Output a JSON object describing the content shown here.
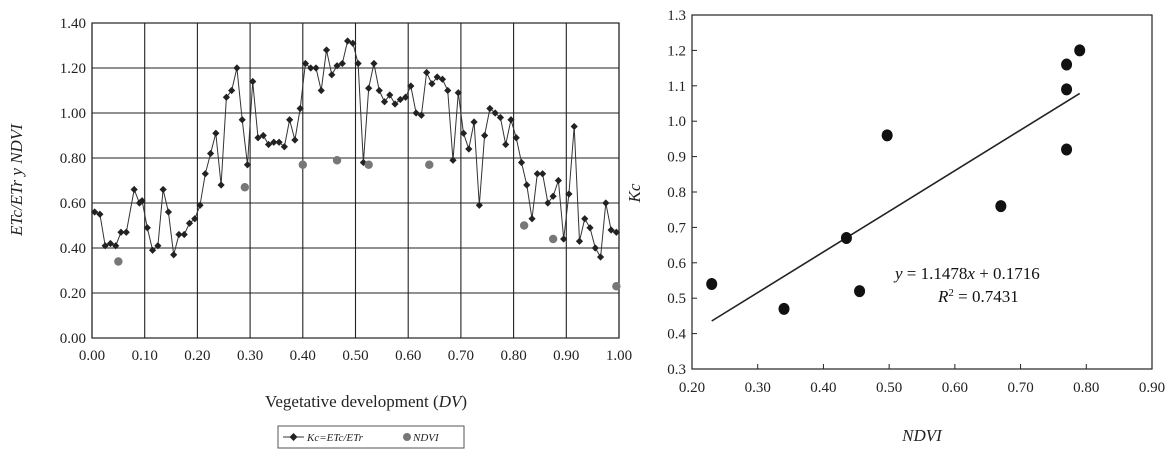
{
  "chart_data": [
    {
      "type": "line",
      "xlabel_text": "Vegetative development (",
      "xlabel_var": "DV",
      "xlabel_close": ")",
      "ylabel": "ETc/ETr  y  NDVI",
      "xlim": [
        0.0,
        1.0
      ],
      "ylim": [
        0.0,
        1.4
      ],
      "xticks": [
        "0.00",
        "0.10",
        "0.20",
        "0.30",
        "0.40",
        "0.50",
        "0.60",
        "0.70",
        "0.80",
        "0.90",
        "1.00"
      ],
      "yticks": [
        "0.00",
        "0.20",
        "0.40",
        "0.60",
        "0.80",
        "1.00",
        "1.20",
        "1.40"
      ],
      "grid": true,
      "legend": "bottom",
      "series": [
        {
          "name": "Kc=ETc/ETr",
          "marker": "diamond",
          "color": "#222222",
          "points": [
            [
              0.005,
              0.56
            ],
            [
              0.015,
              0.55
            ],
            [
              0.025,
              0.41
            ],
            [
              0.035,
              0.42
            ],
            [
              0.045,
              0.41
            ],
            [
              0.055,
              0.47
            ],
            [
              0.065,
              0.47
            ],
            [
              0.08,
              0.66
            ],
            [
              0.09,
              0.6
            ],
            [
              0.095,
              0.61
            ],
            [
              0.105,
              0.49
            ],
            [
              0.115,
              0.39
            ],
            [
              0.125,
              0.41
            ],
            [
              0.135,
              0.66
            ],
            [
              0.145,
              0.56
            ],
            [
              0.155,
              0.37
            ],
            [
              0.165,
              0.46
            ],
            [
              0.175,
              0.46
            ],
            [
              0.185,
              0.51
            ],
            [
              0.195,
              0.53
            ],
            [
              0.205,
              0.59
            ],
            [
              0.215,
              0.73
            ],
            [
              0.225,
              0.82
            ],
            [
              0.235,
              0.91
            ],
            [
              0.245,
              0.68
            ],
            [
              0.255,
              1.07
            ],
            [
              0.265,
              1.1
            ],
            [
              0.275,
              1.2
            ],
            [
              0.285,
              0.97
            ],
            [
              0.295,
              0.77
            ],
            [
              0.305,
              1.14
            ],
            [
              0.315,
              0.89
            ],
            [
              0.325,
              0.9
            ],
            [
              0.335,
              0.86
            ],
            [
              0.345,
              0.87
            ],
            [
              0.355,
              0.87
            ],
            [
              0.365,
              0.85
            ],
            [
              0.375,
              0.97
            ],
            [
              0.385,
              0.88
            ],
            [
              0.395,
              1.02
            ],
            [
              0.405,
              1.22
            ],
            [
              0.415,
              1.2
            ],
            [
              0.425,
              1.2
            ],
            [
              0.435,
              1.1
            ],
            [
              0.445,
              1.28
            ],
            [
              0.455,
              1.17
            ],
            [
              0.465,
              1.21
            ],
            [
              0.475,
              1.22
            ],
            [
              0.485,
              1.32
            ],
            [
              0.495,
              1.31
            ],
            [
              0.505,
              1.22
            ],
            [
              0.515,
              0.78
            ],
            [
              0.525,
              1.11
            ],
            [
              0.535,
              1.22
            ],
            [
              0.545,
              1.1
            ],
            [
              0.555,
              1.05
            ],
            [
              0.565,
              1.08
            ],
            [
              0.575,
              1.04
            ],
            [
              0.585,
              1.06
            ],
            [
              0.595,
              1.07
            ],
            [
              0.605,
              1.12
            ],
            [
              0.615,
              1.0
            ],
            [
              0.625,
              0.99
            ],
            [
              0.635,
              1.18
            ],
            [
              0.645,
              1.13
            ],
            [
              0.655,
              1.16
            ],
            [
              0.665,
              1.15
            ],
            [
              0.675,
              1.1
            ],
            [
              0.685,
              0.79
            ],
            [
              0.695,
              1.09
            ],
            [
              0.705,
              0.91
            ],
            [
              0.715,
              0.84
            ],
            [
              0.725,
              0.96
            ],
            [
              0.735,
              0.59
            ],
            [
              0.745,
              0.9
            ],
            [
              0.755,
              1.02
            ],
            [
              0.765,
              1.0
            ],
            [
              0.775,
              0.98
            ],
            [
              0.785,
              0.86
            ],
            [
              0.795,
              0.97
            ],
            [
              0.805,
              0.89
            ],
            [
              0.815,
              0.78
            ],
            [
              0.825,
              0.68
            ],
            [
              0.835,
              0.53
            ],
            [
              0.845,
              0.73
            ],
            [
              0.855,
              0.73
            ],
            [
              0.865,
              0.6
            ],
            [
              0.875,
              0.63
            ],
            [
              0.885,
              0.7
            ],
            [
              0.895,
              0.44
            ],
            [
              0.905,
              0.64
            ],
            [
              0.915,
              0.94
            ],
            [
              0.925,
              0.43
            ],
            [
              0.935,
              0.53
            ],
            [
              0.945,
              0.49
            ],
            [
              0.955,
              0.4
            ],
            [
              0.965,
              0.36
            ],
            [
              0.975,
              0.6
            ],
            [
              0.985,
              0.48
            ],
            [
              0.995,
              0.47
            ]
          ]
        },
        {
          "name": "NDVI",
          "marker": "circle",
          "color": "#777777",
          "points": [
            [
              0.05,
              0.34
            ],
            [
              0.29,
              0.67
            ],
            [
              0.4,
              0.77
            ],
            [
              0.465,
              0.79
            ],
            [
              0.525,
              0.77
            ],
            [
              0.64,
              0.77
            ],
            [
              0.82,
              0.5
            ],
            [
              0.875,
              0.44
            ],
            [
              0.995,
              0.23
            ]
          ]
        }
      ]
    },
    {
      "type": "scatter",
      "xlabel": "NDVI",
      "ylabel": "Kc",
      "xlim": [
        0.2,
        0.9
      ],
      "ylim": [
        0.3,
        1.3
      ],
      "xticks": [
        "0.20",
        "0.30",
        "0.40",
        "0.50",
        "0.60",
        "0.70",
        "0.80",
        "0.90"
      ],
      "yticks": [
        "0.3",
        "0.4",
        "0.5",
        "0.6",
        "0.7",
        "0.8",
        "0.9",
        "1.0",
        "1.1",
        "1.2",
        "1.3"
      ],
      "grid": false,
      "points": [
        [
          0.23,
          0.54
        ],
        [
          0.34,
          0.47
        ],
        [
          0.435,
          0.67
        ],
        [
          0.455,
          0.52
        ],
        [
          0.497,
          0.96
        ],
        [
          0.67,
          0.76
        ],
        [
          0.77,
          0.92
        ],
        [
          0.77,
          1.09
        ],
        [
          0.77,
          1.16
        ],
        [
          0.79,
          1.2
        ]
      ],
      "trendline": {
        "slope": 1.1478,
        "intercept": 0.1716,
        "x_range": [
          0.23,
          0.79
        ]
      },
      "equation": {
        "y_var": "y",
        "eq_mid": " = 1.1478",
        "x_var": "x",
        "eq_end": " +  0.1716",
        "r_var": "R",
        "r_sup": "2",
        "r_end": " = 0.7431"
      }
    }
  ],
  "legend": {
    "kc_label": "Kc=ETc/ETr",
    "ndvi_label": "NDVI"
  }
}
